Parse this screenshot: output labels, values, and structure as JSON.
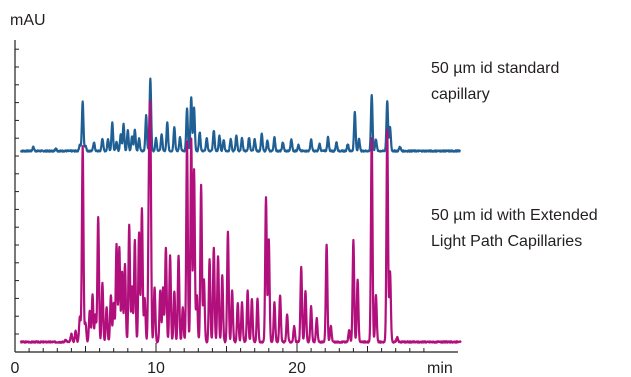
{
  "chart_data": {
    "type": "line",
    "ylabel": "mAU",
    "xlabel": "min",
    "xlim": [
      0,
      29.5
    ],
    "x_ticks": [
      0,
      10,
      20
    ],
    "y_axis_numeric_labels": false,
    "grid": false,
    "legend": "inline-right",
    "annotations": [
      {
        "lines": [
          "50 µm id standard",
          "capillary"
        ],
        "series": "standard"
      },
      {
        "lines": [
          "50 µm id with Extended",
          "Light Path Capillaries"
        ],
        "series": "elp"
      }
    ],
    "series": [
      {
        "id": "standard",
        "color": "#1f5f94",
        "baseline": 1,
        "peaks": [
          [
            1.3,
            1
          ],
          [
            2.9,
            0.7
          ],
          [
            4.6,
            1.6
          ],
          [
            4.8,
            12.5
          ],
          [
            5.0,
            1.3
          ],
          [
            5.6,
            2.2
          ],
          [
            6.2,
            3.2
          ],
          [
            6.6,
            3
          ],
          [
            6.9,
            7.3
          ],
          [
            7.2,
            2.2
          ],
          [
            7.5,
            4.2
          ],
          [
            7.7,
            6.8
          ],
          [
            8.0,
            5.2
          ],
          [
            8.3,
            3.8
          ],
          [
            8.5,
            5.5
          ],
          [
            8.8,
            3.1
          ],
          [
            9.3,
            9
          ],
          [
            9.6,
            18.4
          ],
          [
            10.0,
            3.2
          ],
          [
            10.4,
            4.3
          ],
          [
            10.8,
            7.2
          ],
          [
            11.3,
            6.2
          ],
          [
            11.7,
            3.5
          ],
          [
            12.2,
            10.8
          ],
          [
            12.5,
            13.8
          ],
          [
            12.7,
            10.9
          ],
          [
            13.1,
            4.8
          ],
          [
            13.6,
            3.2
          ],
          [
            14.1,
            5.2
          ],
          [
            14.5,
            3.8
          ],
          [
            14.8,
            2.8
          ],
          [
            15.3,
            3
          ],
          [
            15.7,
            4
          ],
          [
            16.1,
            3.3
          ],
          [
            16.6,
            3.4
          ],
          [
            17.0,
            3
          ],
          [
            17.5,
            4.3
          ],
          [
            17.9,
            2.6
          ],
          [
            18.4,
            3.4
          ],
          [
            19.0,
            2.2
          ],
          [
            19.6,
            3
          ],
          [
            20.1,
            1.5
          ],
          [
            21.0,
            2.9
          ],
          [
            21.6,
            1.8
          ],
          [
            22.2,
            3.5
          ],
          [
            22.8,
            2.2
          ],
          [
            23.6,
            1.8
          ],
          [
            24.1,
            9.9
          ],
          [
            24.4,
            3
          ],
          [
            25.3,
            14.3
          ],
          [
            25.6,
            3
          ],
          [
            26.4,
            12.8
          ],
          [
            26.6,
            6
          ],
          [
            27.3,
            1.1
          ]
        ]
      },
      {
        "id": "elp",
        "color": "#b10f7b",
        "baseline": 0,
        "peaks": [
          [
            3.6,
            0.5
          ],
          [
            4.0,
            2
          ],
          [
            4.3,
            2.8
          ],
          [
            4.6,
            6.5
          ],
          [
            4.8,
            50
          ],
          [
            5.0,
            5
          ],
          [
            5.3,
            8
          ],
          [
            5.5,
            12
          ],
          [
            5.7,
            7
          ],
          [
            5.9,
            32
          ],
          [
            6.2,
            15
          ],
          [
            6.5,
            9
          ],
          [
            6.8,
            12
          ],
          [
            7.0,
            10
          ],
          [
            7.2,
            25
          ],
          [
            7.4,
            24
          ],
          [
            7.6,
            18
          ],
          [
            7.8,
            20
          ],
          [
            8.1,
            30
          ],
          [
            8.3,
            14
          ],
          [
            8.5,
            26
          ],
          [
            8.8,
            28
          ],
          [
            9.0,
            34
          ],
          [
            9.2,
            11
          ],
          [
            9.5,
            37
          ],
          [
            9.6,
            52
          ],
          [
            9.9,
            14
          ],
          [
            10.3,
            13
          ],
          [
            10.5,
            14
          ],
          [
            10.7,
            24
          ],
          [
            11.0,
            22
          ],
          [
            11.3,
            13
          ],
          [
            11.6,
            22
          ],
          [
            11.9,
            9
          ],
          [
            12.2,
            51
          ],
          [
            12.5,
            52
          ],
          [
            12.7,
            44
          ],
          [
            12.9,
            12
          ],
          [
            13.2,
            40
          ],
          [
            13.4,
            16
          ],
          [
            13.8,
            21
          ],
          [
            14.1,
            24
          ],
          [
            14.4,
            22
          ],
          [
            14.7,
            17
          ],
          [
            15.1,
            28
          ],
          [
            15.4,
            13
          ],
          [
            15.8,
            10
          ],
          [
            16.1,
            10
          ],
          [
            16.5,
            13
          ],
          [
            16.8,
            11
          ],
          [
            17.2,
            11
          ],
          [
            17.8,
            37
          ],
          [
            18.0,
            26
          ],
          [
            18.4,
            10
          ],
          [
            18.8,
            12
          ],
          [
            19.3,
            7
          ],
          [
            19.8,
            4
          ],
          [
            20.3,
            19
          ],
          [
            20.6,
            13
          ],
          [
            21.0,
            9
          ],
          [
            21.4,
            6
          ],
          [
            22.1,
            25
          ],
          [
            22.4,
            4
          ],
          [
            23.7,
            3
          ],
          [
            24.0,
            26
          ],
          [
            24.3,
            16
          ],
          [
            25.3,
            52
          ],
          [
            25.6,
            12
          ],
          [
            26.4,
            54
          ],
          [
            26.6,
            18
          ],
          [
            27.1,
            1.2
          ]
        ]
      }
    ]
  }
}
